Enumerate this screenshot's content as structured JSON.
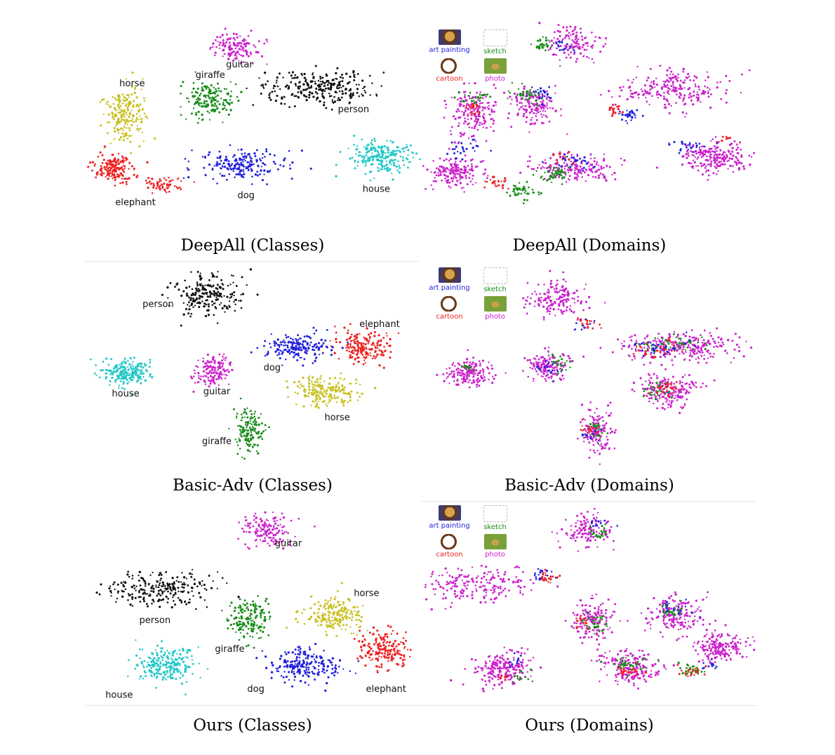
{
  "colors": {
    "guitar": "#cc22cc",
    "person": "#111111",
    "giraffe": "#1a8c1a",
    "horse": "#c8c020",
    "elephant": "#ee2222",
    "dog": "#2222dd",
    "house": "#22c8c8",
    "art painting": "#2222dd",
    "sketch": "#1a8c1a",
    "cartoon": "#ee2222",
    "photo": "#cc22cc"
  },
  "legend": [
    {
      "label": "art painting",
      "color": "#2222dd",
      "icon": "art-painting-icon"
    },
    {
      "label": "sketch",
      "color": "#1a8c1a",
      "icon": "sketch-icon"
    },
    {
      "label": "cartoon",
      "color": "#ee2222",
      "icon": "cartoon-icon"
    },
    {
      "label": "photo",
      "color": "#cc22cc",
      "icon": "photo-icon"
    }
  ],
  "chart_data": [
    {
      "type": "scatter",
      "title": "DeepAll (Classes)",
      "series": [
        {
          "name": "guitar",
          "clusters": [
            {
              "x": 0.44,
              "y": 0.14,
              "rx": 0.07,
              "ry": 0.06,
              "n": 140
            }
          ]
        },
        {
          "name": "person",
          "clusters": [
            {
              "x": 0.71,
              "y": 0.33,
              "rx": 0.16,
              "ry": 0.07,
              "n": 260
            }
          ]
        },
        {
          "name": "giraffe",
          "clusters": [
            {
              "x": 0.37,
              "y": 0.39,
              "rx": 0.07,
              "ry": 0.08,
              "n": 170
            }
          ]
        },
        {
          "name": "horse",
          "clusters": [
            {
              "x": 0.11,
              "y": 0.46,
              "rx": 0.06,
              "ry": 0.12,
              "n": 200
            }
          ]
        },
        {
          "name": "elephant",
          "clusters": [
            {
              "x": 0.07,
              "y": 0.72,
              "rx": 0.07,
              "ry": 0.06,
              "n": 170
            },
            {
              "x": 0.23,
              "y": 0.79,
              "rx": 0.05,
              "ry": 0.03,
              "n": 60
            }
          ]
        },
        {
          "name": "dog",
          "clusters": [
            {
              "x": 0.47,
              "y": 0.7,
              "rx": 0.12,
              "ry": 0.06,
              "n": 200
            }
          ]
        },
        {
          "name": "house",
          "clusters": [
            {
              "x": 0.89,
              "y": 0.66,
              "rx": 0.09,
              "ry": 0.07,
              "n": 220
            }
          ]
        }
      ],
      "labels": [
        {
          "text": "guitar",
          "x": 0.46,
          "y": 0.235
        },
        {
          "text": "person",
          "x": 0.81,
          "y": 0.45
        },
        {
          "text": "giraffe",
          "x": 0.37,
          "y": 0.285
        },
        {
          "text": "horse",
          "x": 0.13,
          "y": 0.325
        },
        {
          "text": "elephant",
          "x": 0.14,
          "y": 0.895
        },
        {
          "text": "dog",
          "x": 0.48,
          "y": 0.86
        },
        {
          "text": "house",
          "x": 0.88,
          "y": 0.83
        }
      ]
    },
    {
      "type": "scatter",
      "title": "DeepAll (Domains)",
      "series": [
        {
          "name": "photo",
          "clusters": [
            {
              "x": 0.45,
              "y": 0.12,
              "rx": 0.07,
              "ry": 0.07,
              "n": 120
            },
            {
              "x": 0.75,
              "y": 0.34,
              "rx": 0.15,
              "ry": 0.08,
              "n": 230
            },
            {
              "x": 0.15,
              "y": 0.45,
              "rx": 0.07,
              "ry": 0.12,
              "n": 180
            },
            {
              "x": 0.33,
              "y": 0.42,
              "rx": 0.07,
              "ry": 0.08,
              "n": 150
            },
            {
              "x": 0.09,
              "y": 0.74,
              "rx": 0.08,
              "ry": 0.07,
              "n": 170
            },
            {
              "x": 0.46,
              "y": 0.72,
              "rx": 0.12,
              "ry": 0.06,
              "n": 170
            },
            {
              "x": 0.88,
              "y": 0.67,
              "rx": 0.09,
              "ry": 0.07,
              "n": 220
            }
          ]
        },
        {
          "name": "sketch",
          "clusters": [
            {
              "x": 0.35,
              "y": 0.13,
              "rx": 0.03,
              "ry": 0.03,
              "n": 30
            },
            {
              "x": 0.31,
              "y": 0.36,
              "rx": 0.04,
              "ry": 0.04,
              "n": 35
            },
            {
              "x": 0.14,
              "y": 0.38,
              "rx": 0.04,
              "ry": 0.03,
              "n": 25
            },
            {
              "x": 0.29,
              "y": 0.83,
              "rx": 0.04,
              "ry": 0.03,
              "n": 45
            },
            {
              "x": 0.39,
              "y": 0.75,
              "rx": 0.05,
              "ry": 0.04,
              "n": 45
            }
          ]
        },
        {
          "name": "art painting",
          "clusters": [
            {
              "x": 0.42,
              "y": 0.14,
              "rx": 0.03,
              "ry": 0.03,
              "n": 15
            },
            {
              "x": 0.63,
              "y": 0.47,
              "rx": 0.04,
              "ry": 0.03,
              "n": 30
            },
            {
              "x": 0.82,
              "y": 0.61,
              "rx": 0.05,
              "ry": 0.03,
              "n": 25
            },
            {
              "x": 0.12,
              "y": 0.62,
              "rx": 0.05,
              "ry": 0.05,
              "n": 25
            },
            {
              "x": 0.45,
              "y": 0.68,
              "rx": 0.06,
              "ry": 0.04,
              "n": 30
            },
            {
              "x": 0.35,
              "y": 0.36,
              "rx": 0.04,
              "ry": 0.04,
              "n": 20
            }
          ]
        },
        {
          "name": "cartoon",
          "clusters": [
            {
              "x": 0.14,
              "y": 0.43,
              "rx": 0.03,
              "ry": 0.03,
              "n": 18
            },
            {
              "x": 0.58,
              "y": 0.44,
              "rx": 0.04,
              "ry": 0.03,
              "n": 20
            },
            {
              "x": 0.22,
              "y": 0.78,
              "rx": 0.04,
              "ry": 0.03,
              "n": 25
            },
            {
              "x": 0.42,
              "y": 0.67,
              "rx": 0.03,
              "ry": 0.03,
              "n": 12
            },
            {
              "x": 0.92,
              "y": 0.58,
              "rx": 0.03,
              "ry": 0.02,
              "n": 10
            }
          ]
        }
      ]
    },
    {
      "type": "scatter",
      "title": "Basic-Adv (Classes)",
      "series": [
        {
          "name": "person",
          "clusters": [
            {
              "x": 0.36,
              "y": 0.14,
              "rx": 0.09,
              "ry": 0.1,
              "n": 220
            }
          ]
        },
        {
          "name": "dog",
          "clusters": [
            {
              "x": 0.64,
              "y": 0.4,
              "rx": 0.08,
              "ry": 0.06,
              "n": 180
            }
          ]
        },
        {
          "name": "elephant",
          "clusters": [
            {
              "x": 0.84,
              "y": 0.4,
              "rx": 0.08,
              "ry": 0.07,
              "n": 190
            }
          ]
        },
        {
          "name": "house",
          "clusters": [
            {
              "x": 0.11,
              "y": 0.53,
              "rx": 0.07,
              "ry": 0.06,
              "n": 200
            }
          ]
        },
        {
          "name": "guitar",
          "clusters": [
            {
              "x": 0.38,
              "y": 0.52,
              "rx": 0.05,
              "ry": 0.07,
              "n": 150
            }
          ]
        },
        {
          "name": "horse",
          "clusters": [
            {
              "x": 0.72,
              "y": 0.62,
              "rx": 0.09,
              "ry": 0.07,
              "n": 200
            }
          ]
        },
        {
          "name": "giraffe",
          "clusters": [
            {
              "x": 0.49,
              "y": 0.82,
              "rx": 0.04,
              "ry": 0.1,
              "n": 150
            }
          ]
        }
      ],
      "labels": [
        {
          "text": "person",
          "x": 0.21,
          "y": 0.2
        },
        {
          "text": "elephant",
          "x": 0.89,
          "y": 0.3
        },
        {
          "text": "dog",
          "x": 0.56,
          "y": 0.52
        },
        {
          "text": "house",
          "x": 0.11,
          "y": 0.65
        },
        {
          "text": "guitar",
          "x": 0.39,
          "y": 0.64
        },
        {
          "text": "horse",
          "x": 0.76,
          "y": 0.77
        },
        {
          "text": "giraffe",
          "x": 0.39,
          "y": 0.89
        }
      ]
    },
    {
      "type": "scatter",
      "title": "Basic-Adv (Domains)",
      "series": [
        {
          "name": "photo",
          "clusters": [
            {
              "x": 0.4,
              "y": 0.16,
              "rx": 0.08,
              "ry": 0.09,
              "n": 160
            },
            {
              "x": 0.78,
              "y": 0.4,
              "rx": 0.18,
              "ry": 0.07,
              "n": 260
            },
            {
              "x": 0.13,
              "y": 0.53,
              "rx": 0.07,
              "ry": 0.06,
              "n": 180
            },
            {
              "x": 0.37,
              "y": 0.5,
              "rx": 0.06,
              "ry": 0.07,
              "n": 140
            },
            {
              "x": 0.74,
              "y": 0.62,
              "rx": 0.08,
              "ry": 0.07,
              "n": 180
            },
            {
              "x": 0.52,
              "y": 0.83,
              "rx": 0.04,
              "ry": 0.1,
              "n": 140
            }
          ]
        },
        {
          "name": "sketch",
          "clusters": [
            {
              "x": 0.75,
              "y": 0.39,
              "rx": 0.1,
              "ry": 0.04,
              "n": 45
            },
            {
              "x": 0.41,
              "y": 0.48,
              "rx": 0.03,
              "ry": 0.04,
              "n": 20
            },
            {
              "x": 0.71,
              "y": 0.62,
              "rx": 0.04,
              "ry": 0.04,
              "n": 30
            },
            {
              "x": 0.52,
              "y": 0.81,
              "rx": 0.03,
              "ry": 0.05,
              "n": 25
            },
            {
              "x": 0.13,
              "y": 0.5,
              "rx": 0.03,
              "ry": 0.02,
              "n": 10
            }
          ]
        },
        {
          "name": "art painting",
          "clusters": [
            {
              "x": 0.72,
              "y": 0.4,
              "rx": 0.1,
              "ry": 0.04,
              "n": 40
            },
            {
              "x": 0.48,
              "y": 0.29,
              "rx": 0.03,
              "ry": 0.03,
              "n": 12
            },
            {
              "x": 0.38,
              "y": 0.52,
              "rx": 0.04,
              "ry": 0.04,
              "n": 15
            },
            {
              "x": 0.5,
              "y": 0.85,
              "rx": 0.03,
              "ry": 0.04,
              "n": 12
            }
          ]
        },
        {
          "name": "cartoon",
          "clusters": [
            {
              "x": 0.49,
              "y": 0.28,
              "rx": 0.03,
              "ry": 0.03,
              "n": 18
            },
            {
              "x": 0.7,
              "y": 0.41,
              "rx": 0.08,
              "ry": 0.04,
              "n": 30
            },
            {
              "x": 0.74,
              "y": 0.61,
              "rx": 0.04,
              "ry": 0.03,
              "n": 25
            },
            {
              "x": 0.5,
              "y": 0.82,
              "rx": 0.03,
              "ry": 0.04,
              "n": 15
            }
          ]
        }
      ]
    },
    {
      "type": "scatter",
      "title": "Ours (Classes)",
      "series": [
        {
          "name": "guitar",
          "clusters": [
            {
              "x": 0.54,
              "y": 0.12,
              "rx": 0.07,
              "ry": 0.08,
              "n": 140
            }
          ]
        },
        {
          "name": "person",
          "clusters": [
            {
              "x": 0.22,
              "y": 0.42,
              "rx": 0.14,
              "ry": 0.08,
              "n": 230
            }
          ]
        },
        {
          "name": "giraffe",
          "clusters": [
            {
              "x": 0.49,
              "y": 0.58,
              "rx": 0.06,
              "ry": 0.09,
              "n": 160
            }
          ]
        },
        {
          "name": "horse",
          "clusters": [
            {
              "x": 0.75,
              "y": 0.56,
              "rx": 0.09,
              "ry": 0.08,
              "n": 200
            }
          ]
        },
        {
          "name": "elephant",
          "clusters": [
            {
              "x": 0.9,
              "y": 0.74,
              "rx": 0.07,
              "ry": 0.08,
              "n": 190
            }
          ]
        },
        {
          "name": "dog",
          "clusters": [
            {
              "x": 0.66,
              "y": 0.82,
              "rx": 0.1,
              "ry": 0.08,
              "n": 210
            }
          ]
        },
        {
          "name": "house",
          "clusters": [
            {
              "x": 0.23,
              "y": 0.82,
              "rx": 0.08,
              "ry": 0.08,
              "n": 220
            }
          ]
        }
      ],
      "labels": [
        {
          "text": "guitar",
          "x": 0.61,
          "y": 0.2
        },
        {
          "text": "person",
          "x": 0.2,
          "y": 0.6
        },
        {
          "text": "horse",
          "x": 0.85,
          "y": 0.46
        },
        {
          "text": "giraffe",
          "x": 0.43,
          "y": 0.75
        },
        {
          "text": "dog",
          "x": 0.51,
          "y": 0.96
        },
        {
          "text": "house",
          "x": 0.09,
          "y": 0.99
        },
        {
          "text": "elephant",
          "x": 0.91,
          "y": 0.96
        }
      ]
    },
    {
      "type": "scatter",
      "title": "Ours (Domains)",
      "series": [
        {
          "name": "photo",
          "clusters": [
            {
              "x": 0.5,
              "y": 0.12,
              "rx": 0.07,
              "ry": 0.08,
              "n": 130
            },
            {
              "x": 0.15,
              "y": 0.4,
              "rx": 0.14,
              "ry": 0.08,
              "n": 200
            },
            {
              "x": 0.51,
              "y": 0.58,
              "rx": 0.06,
              "ry": 0.09,
              "n": 150
            },
            {
              "x": 0.76,
              "y": 0.56,
              "rx": 0.08,
              "ry": 0.08,
              "n": 180
            },
            {
              "x": 0.9,
              "y": 0.73,
              "rx": 0.07,
              "ry": 0.07,
              "n": 180
            },
            {
              "x": 0.62,
              "y": 0.83,
              "rx": 0.09,
              "ry": 0.08,
              "n": 190
            },
            {
              "x": 0.23,
              "y": 0.84,
              "rx": 0.08,
              "ry": 0.08,
              "n": 210
            }
          ]
        },
        {
          "name": "sketch",
          "clusters": [
            {
              "x": 0.53,
              "y": 0.13,
              "rx": 0.03,
              "ry": 0.04,
              "n": 25
            },
            {
              "x": 0.52,
              "y": 0.6,
              "rx": 0.04,
              "ry": 0.05,
              "n": 30
            },
            {
              "x": 0.75,
              "y": 0.54,
              "rx": 0.04,
              "ry": 0.05,
              "n": 30
            },
            {
              "x": 0.62,
              "y": 0.82,
              "rx": 0.05,
              "ry": 0.04,
              "n": 35
            },
            {
              "x": 0.81,
              "y": 0.84,
              "rx": 0.04,
              "ry": 0.03,
              "n": 25
            },
            {
              "x": 0.29,
              "y": 0.88,
              "rx": 0.03,
              "ry": 0.03,
              "n": 12
            }
          ]
        },
        {
          "name": "art painting",
          "clusters": [
            {
              "x": 0.36,
              "y": 0.35,
              "rx": 0.03,
              "ry": 0.03,
              "n": 20
            },
            {
              "x": 0.52,
              "y": 0.09,
              "rx": 0.03,
              "ry": 0.03,
              "n": 10
            },
            {
              "x": 0.78,
              "y": 0.52,
              "rx": 0.04,
              "ry": 0.04,
              "n": 15
            },
            {
              "x": 0.87,
              "y": 0.82,
              "rx": 0.03,
              "ry": 0.03,
              "n": 12
            },
            {
              "x": 0.27,
              "y": 0.8,
              "rx": 0.03,
              "ry": 0.04,
              "n": 12
            }
          ]
        },
        {
          "name": "cartoon",
          "clusters": [
            {
              "x": 0.37,
              "y": 0.37,
              "rx": 0.03,
              "ry": 0.03,
              "n": 22
            },
            {
              "x": 0.62,
              "y": 0.85,
              "rx": 0.04,
              "ry": 0.04,
              "n": 25
            },
            {
              "x": 0.82,
              "y": 0.86,
              "rx": 0.04,
              "ry": 0.03,
              "n": 20
            },
            {
              "x": 0.48,
              "y": 0.6,
              "rx": 0.03,
              "ry": 0.03,
              "n": 15
            },
            {
              "x": 0.24,
              "y": 0.88,
              "rx": 0.02,
              "ry": 0.02,
              "n": 8
            }
          ]
        }
      ]
    }
  ]
}
